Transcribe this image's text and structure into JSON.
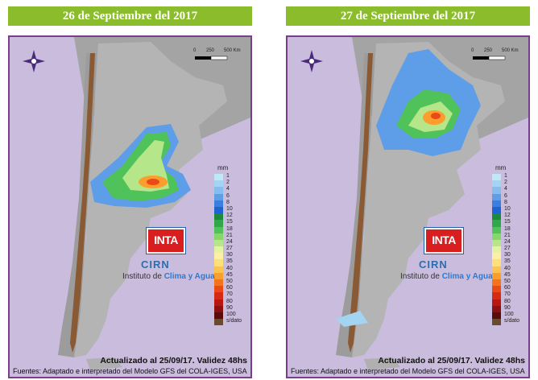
{
  "panels": [
    {
      "title": "26 de Septiembre del 2017",
      "updated": "Actualizado al 25/09/17. Validez 48hs",
      "sources": "Fuentes: Adaptado e interpretado del Modelo GFS del COLA-IGES, USA"
    },
    {
      "title": "27 de Septiembre del 2017",
      "updated": "Actualizado al 25/09/17. Validez 48hs",
      "sources": "Fuentes: Adaptado e interpretado del Modelo GFS del COLA-IGES, USA"
    }
  ],
  "logo": {
    "inta": "INTA",
    "cirn": "CIRN",
    "institute_prefix": "Instituto de ",
    "institute_highlight": "Clima y Agua"
  },
  "scale": {
    "labels": [
      "0",
      "250",
      "500 Km"
    ]
  },
  "legend": {
    "unit": "mm",
    "no_data": "s/dato",
    "classes": [
      {
        "label": "1",
        "color": "#bfe8f7"
      },
      {
        "label": "2",
        "color": "#a3d4f2"
      },
      {
        "label": "4",
        "color": "#86bcee"
      },
      {
        "label": "6",
        "color": "#5e9de8"
      },
      {
        "label": "8",
        "color": "#3a7ee0"
      },
      {
        "label": "10",
        "color": "#1f63d0"
      },
      {
        "label": "12",
        "color": "#1b8a3c"
      },
      {
        "label": "15",
        "color": "#2ea84a"
      },
      {
        "label": "18",
        "color": "#50c25a"
      },
      {
        "label": "21",
        "color": "#85d76a"
      },
      {
        "label": "24",
        "color": "#b6e68a"
      },
      {
        "label": "27",
        "color": "#e4f3a3"
      },
      {
        "label": "30",
        "color": "#fbf1a6"
      },
      {
        "label": "35",
        "color": "#fde07a"
      },
      {
        "label": "40",
        "color": "#fcc44e"
      },
      {
        "label": "45",
        "color": "#fb9e2e"
      },
      {
        "label": "50",
        "color": "#f5721f"
      },
      {
        "label": "60",
        "color": "#ea4a18"
      },
      {
        "label": "70",
        "color": "#d62a14"
      },
      {
        "label": "80",
        "color": "#b8160f"
      },
      {
        "label": "90",
        "color": "#8e0f0f"
      },
      {
        "label": "100",
        "color": "#5a0b0b"
      }
    ],
    "no_data_color": "#6b4a2e"
  },
  "colors": {
    "title_bg": "#8bbc2c",
    "frame": "#7a3d8c",
    "ocean": "#c9bcdc",
    "land": "#a9a9a9",
    "mountains": "#8a5a35"
  }
}
